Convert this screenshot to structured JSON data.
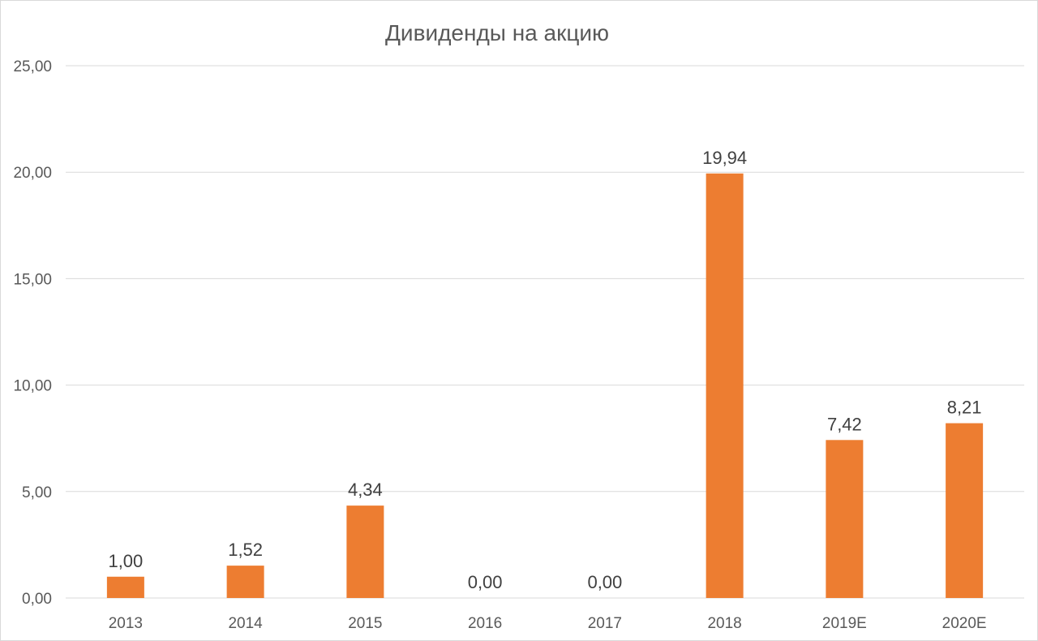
{
  "chart_data": {
    "type": "bar",
    "title": "Дивиденды на акцию",
    "categories": [
      "2013",
      "2014",
      "2015",
      "2016",
      "2017",
      "2018",
      "2019E",
      "2020E"
    ],
    "values": [
      1.0,
      1.52,
      4.34,
      0.0,
      0.0,
      19.94,
      7.42,
      8.21
    ],
    "data_labels": [
      "1,00",
      "1,52",
      "4,34",
      "0,00",
      "0,00",
      "19,94",
      "7,42",
      "8,21"
    ],
    "y_ticks": [
      0,
      5,
      10,
      15,
      20,
      25
    ],
    "y_tick_labels": [
      "0,00",
      "5,00",
      "10,00",
      "15,00",
      "20,00",
      "25,00"
    ],
    "ylim": [
      0,
      25
    ],
    "grid": true,
    "legend": "none",
    "bar_color": "#ED7D31",
    "grid_color": "#D9D9D9"
  }
}
